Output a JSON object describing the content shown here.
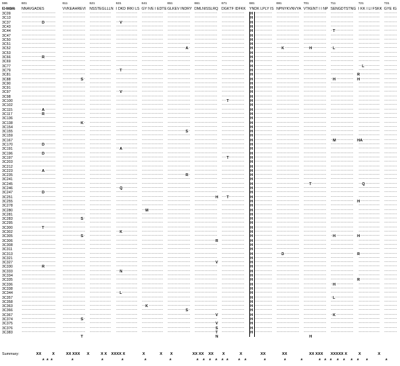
{
  "header_label": "C lones",
  "segments": [
    {
      "pos": "596",
      "seq": "FHYDR"
    },
    {
      "pos": "601",
      "seq": "NNAVGADES"
    },
    {
      "pos": "611",
      "seq": "VVKEAHREVI"
    },
    {
      "pos": "621",
      "seq": "NSSTEGLLLN"
    },
    {
      "pos": "631",
      "seq": "I DKD IRKI LS"
    },
    {
      "pos": "641",
      "seq": "GY IVE I EDTE"
    },
    {
      "pos": "651",
      "seq": "GLKEV INDRY"
    },
    {
      "pos": "661",
      "seq": "DMLNISSLRQ"
    },
    {
      "pos": "671",
      "seq": "DGKTF IDFKK"
    },
    {
      "pos": "681",
      "seq": "YNDK LPLY IS"
    },
    {
      "pos": "691",
      "seq": "NPNYKVNVYA"
    },
    {
      "pos": "701",
      "seq": "VTKENT I I NP"
    },
    {
      "pos": "711",
      "seq": "SENGDTSTNG"
    },
    {
      "pos": "721",
      "seq": "I KK I LI FSKK"
    },
    {
      "pos": "731",
      "seq": "GYE IG"
    }
  ],
  "clones": [
    "3C09",
    "3C13",
    "3C37",
    "3C43",
    "3C44",
    "3C47",
    "3C50",
    "3C51",
    "3C52",
    "3C53",
    "3C66",
    "3C69",
    "3C77",
    "3C79",
    "3C81",
    "3C88",
    "3C90",
    "3C91",
    "3C97",
    "3C98",
    "3C100",
    "3C102",
    "3C115",
    "3C117",
    "3C136",
    "3C138",
    "3C154",
    "3C155",
    "3C159",
    "3C167",
    "3C170",
    "3C191",
    "3C196",
    "3C197",
    "3C203",
    "3C212",
    "3C223",
    "3C235",
    "3C241",
    "3C245",
    "3C246",
    "3C247",
    "3C251",
    "3C255",
    "3C278",
    "3C280",
    "3C281",
    "3C283",
    "3C295",
    "3C300",
    "3C302",
    "3C305",
    "3C306",
    "3C308",
    "3C311",
    "3C313",
    "3C321",
    "3C327",
    "3C330",
    "3C333",
    "3C334",
    "3C335",
    "3C336",
    "3C338",
    "3C344",
    "3C357",
    "3C358",
    "3C363",
    "3C366",
    "3C367",
    "3C374",
    "3C375",
    "3C376",
    "3C383"
  ],
  "conserved_letter": "H",
  "mutations": [
    {
      "row": 2,
      "col": 1,
      "letter": "D"
    },
    {
      "row": 2,
      "col": 3,
      "letter": "V"
    },
    {
      "row": 4,
      "col": 11,
      "letter": "T"
    },
    {
      "row": 8,
      "col": 5,
      "letter": "A"
    },
    {
      "row": 8,
      "col": 9,
      "letter": "K"
    },
    {
      "row": 8,
      "col": 10,
      "letter": "H"
    },
    {
      "row": 8,
      "col": 11,
      "letter": "L"
    },
    {
      "row": 10,
      "col": 1,
      "letter": "R"
    },
    {
      "row": 12,
      "col": 13,
      "letter": "L"
    },
    {
      "row": 13,
      "col": 3,
      "letter": "T"
    },
    {
      "row": 14,
      "col": 12,
      "letter": "R"
    },
    {
      "row": 15,
      "col": 2,
      "letter": "S"
    },
    {
      "row": 15,
      "col": 11,
      "letter": "H"
    },
    {
      "row": 15,
      "col": 12,
      "letter": "H"
    },
    {
      "row": 18,
      "col": 3,
      "letter": "V"
    },
    {
      "row": 20,
      "col": 7,
      "letter": "T"
    },
    {
      "row": 22,
      "col": 1,
      "letter": "A"
    },
    {
      "row": 23,
      "col": 1,
      "letter": "R"
    },
    {
      "row": 25,
      "col": 2,
      "letter": "K"
    },
    {
      "row": 27,
      "col": 5,
      "letter": "S"
    },
    {
      "row": 29,
      "col": 11,
      "letter": "M"
    },
    {
      "row": 29,
      "col": 12,
      "letter": "HA"
    },
    {
      "row": 30,
      "col": 1,
      "letter": "D"
    },
    {
      "row": 31,
      "col": 3,
      "letter": "A"
    },
    {
      "row": 32,
      "col": 1,
      "letter": "D"
    },
    {
      "row": 33,
      "col": 7,
      "letter": "T"
    },
    {
      "row": 36,
      "col": 1,
      "letter": "A"
    },
    {
      "row": 37,
      "col": 5,
      "letter": "R"
    },
    {
      "row": 39,
      "col": 10,
      "letter": "T"
    },
    {
      "row": 39,
      "col": 13,
      "letter": "Q"
    },
    {
      "row": 40,
      "col": 3,
      "letter": "Q"
    },
    {
      "row": 41,
      "col": 1,
      "letter": "D"
    },
    {
      "row": 42,
      "col": 6,
      "letter": "H"
    },
    {
      "row": 42,
      "col": 7,
      "letter": "T"
    },
    {
      "row": 43,
      "col": 12,
      "letter": "H"
    },
    {
      "row": 45,
      "col": 4,
      "letter": "M"
    },
    {
      "row": 47,
      "col": 2,
      "letter": "S"
    },
    {
      "row": 49,
      "col": 1,
      "letter": "T"
    },
    {
      "row": 50,
      "col": 3,
      "letter": "K"
    },
    {
      "row": 51,
      "col": 2,
      "letter": "S"
    },
    {
      "row": 51,
      "col": 11,
      "letter": "H"
    },
    {
      "row": 51,
      "col": 12,
      "letter": "H"
    },
    {
      "row": 52,
      "col": 6,
      "letter": "R"
    },
    {
      "row": 55,
      "col": 9,
      "letter": "D"
    },
    {
      "row": 55,
      "col": 12,
      "letter": "R"
    },
    {
      "row": 57,
      "col": 6,
      "letter": "V"
    },
    {
      "row": 58,
      "col": 1,
      "letter": "R"
    },
    {
      "row": 59,
      "col": 3,
      "letter": "N"
    },
    {
      "row": 61,
      "col": 12,
      "letter": "R"
    },
    {
      "row": 62,
      "col": 11,
      "letter": "H"
    },
    {
      "row": 64,
      "col": 3,
      "letter": "L"
    },
    {
      "row": 65,
      "col": 11,
      "letter": "L"
    },
    {
      "row": 67,
      "col": 4,
      "letter": "K"
    },
    {
      "row": 68,
      "col": 5,
      "letter": "S"
    },
    {
      "row": 69,
      "col": 6,
      "letter": "V"
    },
    {
      "row": 69,
      "col": 11,
      "letter": "K"
    },
    {
      "row": 70,
      "col": 2,
      "letter": "S"
    },
    {
      "row": 71,
      "col": 6,
      "letter": "V"
    },
    {
      "row": 72,
      "col": 6,
      "letter": "S"
    },
    {
      "row": 73,
      "col": 6,
      "letter": "T"
    },
    {
      "row": 74,
      "col": 2,
      "letter": "T"
    },
    {
      "row": 74,
      "col": 6,
      "letter": "N"
    },
    {
      "row": 74,
      "col": 10,
      "letter": "H"
    }
  ],
  "summary": {
    "label": "Summary:",
    "groups": [
      "XX",
      "X",
      "XX XXX",
      "X",
      "X X",
      "XXXX X",
      "X",
      "X",
      "X",
      "XX XX",
      "XX",
      "X",
      "X",
      "XX",
      "XX",
      "XX XXX",
      "XXXXX X",
      "X",
      "X"
    ],
    "star": "*"
  }
}
